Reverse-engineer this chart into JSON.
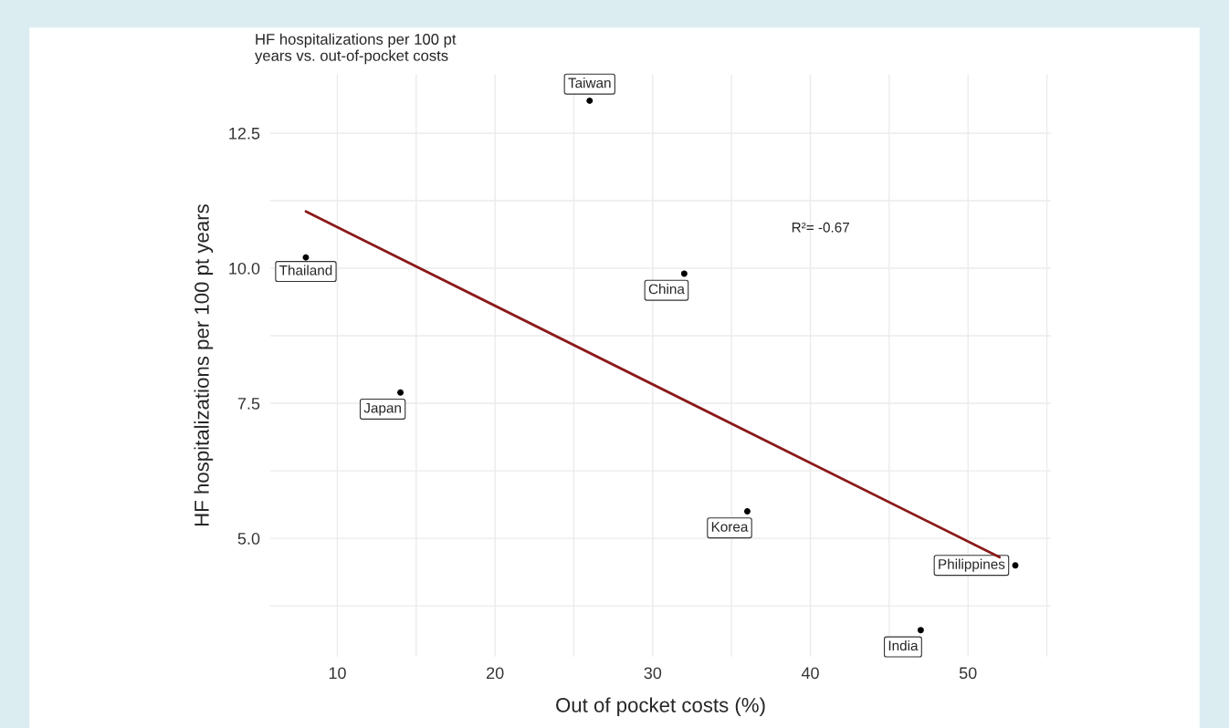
{
  "chart_data": {
    "type": "scatter",
    "title": "HF hospitalizations per 100 pt\nyears vs. out-of-pocket costs",
    "xlabel": "Out of pocket costs (%)",
    "ylabel": "HF hospitalizations per 100 pt years",
    "series": [
      {
        "marker": "circle",
        "color": "#000000",
        "x": [
          26,
          8,
          32,
          14,
          36,
          53,
          47
        ],
        "values": [
          13.1,
          10.2,
          9.9,
          7.7,
          5.5,
          4.5,
          3.3
        ]
      },
      {
        "type": "line",
        "color": "#8b1a1a",
        "x": [
          8,
          52
        ],
        "values": [
          11.05,
          4.65
        ]
      }
    ],
    "annotations": [
      {
        "text": "Taiwan",
        "x": 26,
        "y": 13.1
      },
      {
        "text": "Thailand",
        "x": 8,
        "y": 10.2
      },
      {
        "text": "China",
        "x": 32,
        "y": 9.9
      },
      {
        "text": "Japan",
        "x": 14,
        "y": 7.7
      },
      {
        "text": "Korea",
        "x": 36,
        "y": 5.5
      },
      {
        "text": "Philippines",
        "x": 53,
        "y": 4.5
      },
      {
        "text": "India",
        "x": 47,
        "y": 3.3
      },
      "R²= -0.67"
    ],
    "xlim": [
      5.75,
      55.25
    ],
    "ylim": [
      2.81,
      13.59
    ],
    "xticks": [
      10,
      {
        "value": 15,
        "label": null
      },
      20,
      {
        "value": 25,
        "label": null
      },
      30,
      {
        "value": 35,
        "label": null
      },
      40,
      {
        "value": 45,
        "label": null
      },
      50,
      {
        "value": 55,
        "label": null
      }
    ],
    "yticks": [
      {
        "value": 3.75,
        "label": null
      },
      {
        "value": 5,
        "label": "5.0"
      },
      {
        "value": 6.25,
        "label": null
      },
      7.5,
      {
        "value": 8.75,
        "label": null
      },
      {
        "value": 10,
        "label": "10.0"
      },
      {
        "value": 11.25,
        "label": null
      },
      12.5
    ],
    "grid": true
  }
}
